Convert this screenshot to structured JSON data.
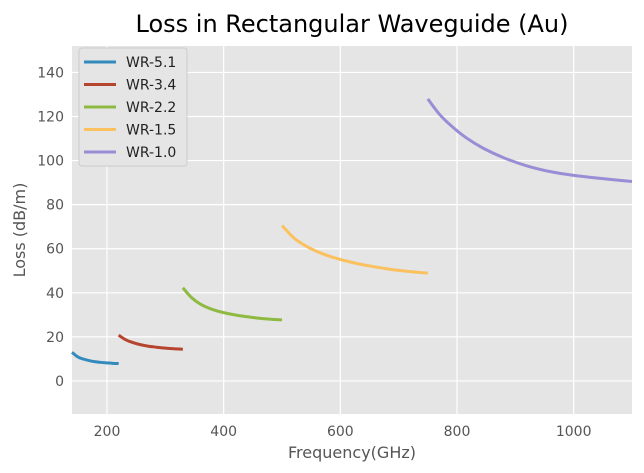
{
  "chart_data": {
    "type": "line",
    "title": "Loss in Rectangular Waveguide (Au)",
    "xlabel": "Frequency(GHz)",
    "ylabel": "Loss (dB/m)",
    "xlim": [
      140,
      1100
    ],
    "ylim": [
      -15,
      152
    ],
    "xticks": [
      200,
      400,
      600,
      800,
      1000
    ],
    "yticks": [
      0,
      20,
      40,
      60,
      80,
      100,
      120,
      140
    ],
    "grid": true,
    "legend_position": "top-left",
    "series": [
      {
        "name": "WR-5.1",
        "color": "#348ABD",
        "x": [
          140,
          150,
          160,
          170,
          180,
          190,
          200,
          210,
          220
        ],
        "y": [
          13.0,
          10.9,
          9.9,
          9.2,
          8.7,
          8.4,
          8.2,
          8.0,
          7.9
        ]
      },
      {
        "name": "WR-3.4",
        "color": "#B5452E",
        "x": [
          220,
          230,
          240,
          255,
          270,
          285,
          300,
          315,
          330
        ],
        "y": [
          20.8,
          19.0,
          17.8,
          16.6,
          15.8,
          15.3,
          14.9,
          14.6,
          14.4
        ]
      },
      {
        "name": "WR-2.2",
        "color": "#8EBA42",
        "x": [
          330,
          345,
          360,
          380,
          400,
          425,
          450,
          475,
          500
        ],
        "y": [
          42.3,
          37.8,
          34.9,
          32.5,
          31.0,
          29.7,
          28.8,
          28.1,
          27.7
        ]
      },
      {
        "name": "WR-1.5",
        "color": "#FBC15E",
        "x": [
          500,
          520,
          540,
          565,
          590,
          620,
          650,
          685,
          720,
          750
        ],
        "y": [
          70.5,
          65.0,
          61.4,
          58.2,
          55.9,
          53.8,
          52.2,
          50.7,
          49.6,
          48.9
        ]
      },
      {
        "name": "WR-1.0",
        "color": "#988ED5",
        "x": [
          750,
          770,
          790,
          815,
          845,
          880,
          920,
          960,
          1000,
          1050,
          1100
        ],
        "y": [
          128.0,
          121.0,
          115.8,
          110.5,
          105.6,
          101.3,
          97.6,
          95.0,
          93.3,
          91.8,
          90.5
        ]
      }
    ]
  }
}
